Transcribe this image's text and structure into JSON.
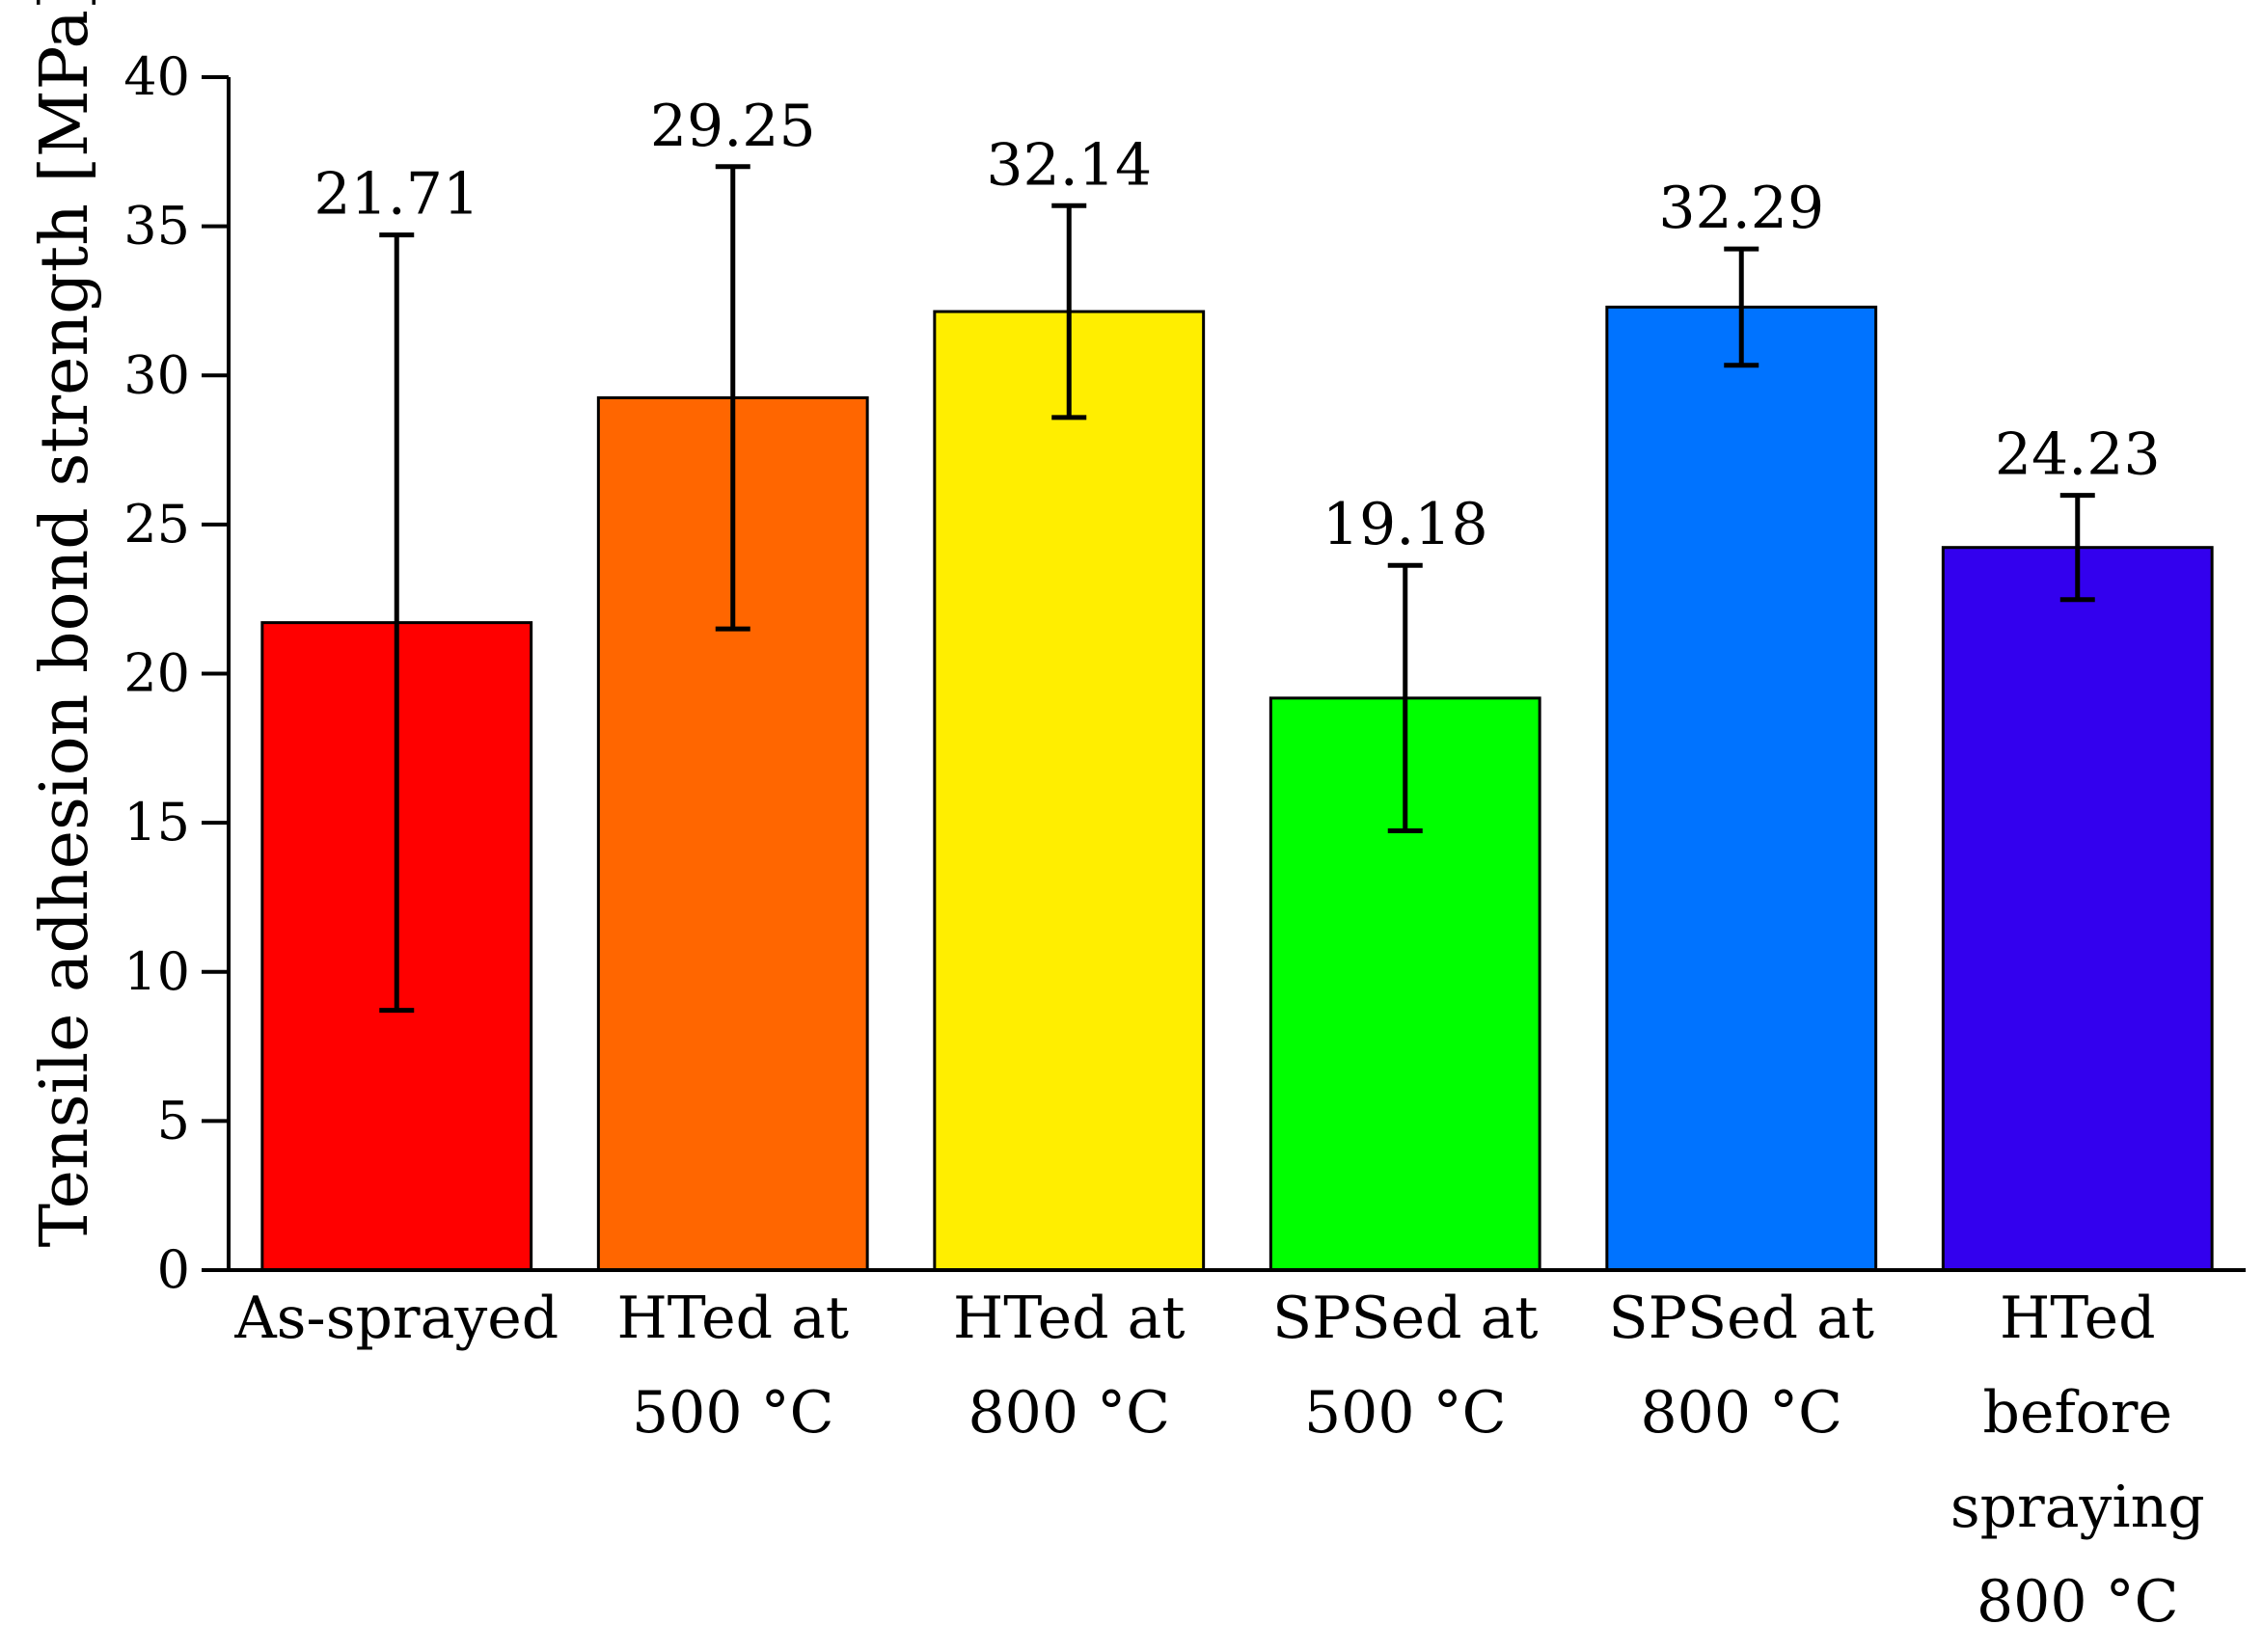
{
  "chart_data": {
    "type": "bar",
    "title": "",
    "xlabel": "",
    "ylabel": "Tensile adhesion bond strength [MPa]",
    "ylim": [
      0,
      40
    ],
    "yticks": [
      0,
      5,
      10,
      15,
      20,
      25,
      30,
      35,
      40
    ],
    "grid": false,
    "legend": "none",
    "categories": [
      [
        "As-sprayed"
      ],
      [
        "HTed at",
        "500 °C"
      ],
      [
        "HTed at",
        "800 °C"
      ],
      [
        "SPSed at",
        "500 °C"
      ],
      [
        "SPSed at",
        "800 °C"
      ],
      [
        "HTed",
        "before",
        "spraying",
        "800 °C"
      ]
    ],
    "values": [
      21.71,
      29.25,
      32.14,
      19.18,
      32.29,
      24.23
    ],
    "value_labels": [
      "21.71",
      "29.25",
      "32.14",
      "19.18",
      "32.29",
      "24.23"
    ],
    "errors": [
      13.0,
      7.75,
      3.55,
      4.45,
      1.95,
      1.75
    ],
    "colors": [
      "#ff0000",
      "#ff6600",
      "#ffee00",
      "#00ff00",
      "#0073ff",
      "#3300ee"
    ]
  }
}
